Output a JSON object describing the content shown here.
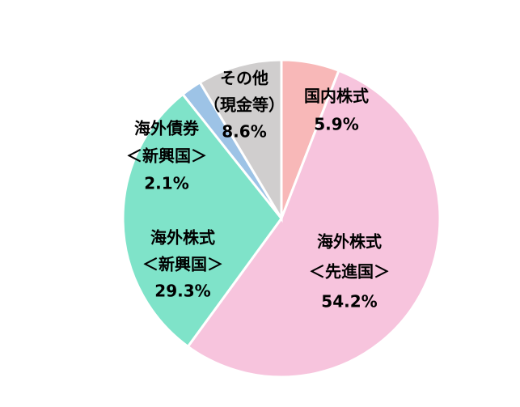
{
  "chart_data": {
    "type": "pie",
    "categories": [
      [
        "国内株式"
      ],
      [
        "海外株式",
        "＜先進国＞"
      ],
      [
        "海外株式",
        "＜新興国＞"
      ],
      [
        "海外債券",
        "＜新興国＞"
      ],
      [
        "その他",
        "（現金等）"
      ]
    ],
    "values": [
      5.9,
      54.2,
      29.3,
      2.1,
      8.6
    ],
    "value_labels": [
      "5.9%",
      "54.2%",
      "29.3%",
      "2.1%",
      "8.6%"
    ],
    "colors": [
      "#f8b8b8",
      "#f7c4dd",
      "#7fe3c9",
      "#9dc3e6",
      "#d0cece"
    ]
  }
}
